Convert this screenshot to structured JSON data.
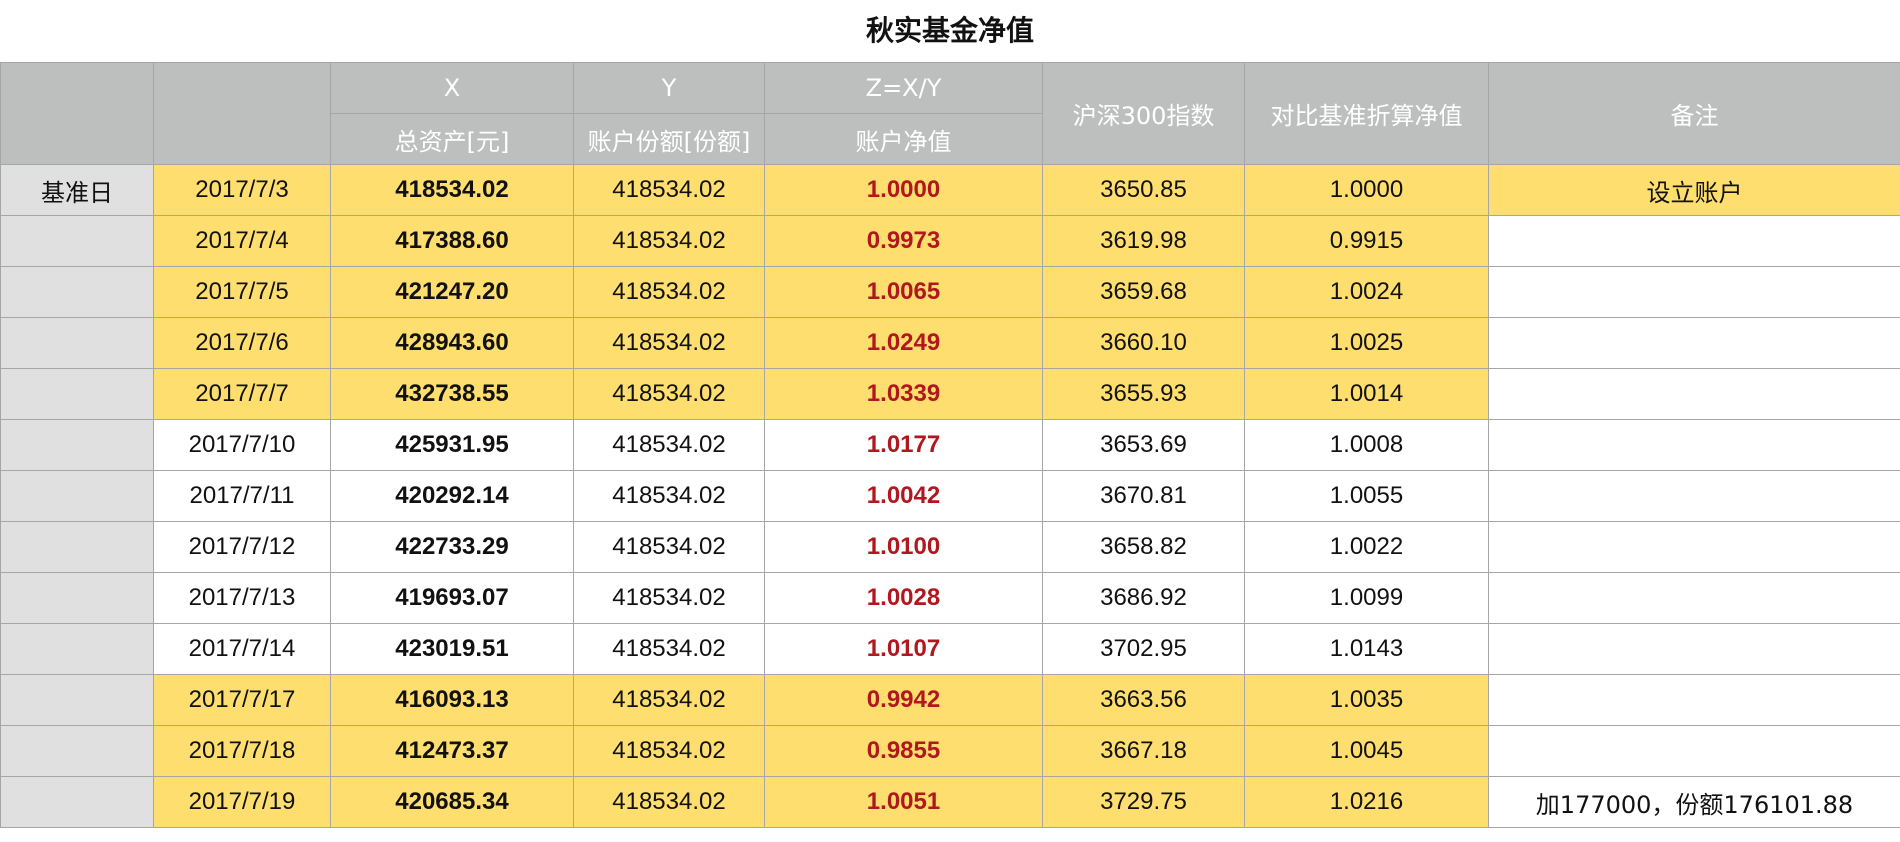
{
  "title": "秋实基金净值",
  "colors": {
    "header_bg": "#bdbfbe",
    "highlight": "#fdde6e",
    "nav_red": "#b0171f",
    "side_bg": "#e0e0e0"
  },
  "header": {
    "row1": {
      "x": "X",
      "y": "Y",
      "z": "Z=X/Y"
    },
    "row2": {
      "total": "总资产[元]",
      "shares": "账户份额[份额]",
      "nav": "账户净值"
    },
    "index": "沪深300指数",
    "adjusted_nav": "对比基准折算净值",
    "note": "备注"
  },
  "rows": [
    {
      "side": "基准日",
      "date": "2017/7/3",
      "total": "418534.02",
      "shares": "418534.02",
      "nav": "1.0000",
      "index": "3650.85",
      "adj": "1.0000",
      "note": "设立账户",
      "highlight": true,
      "note_highlight": true
    },
    {
      "side": "",
      "date": "2017/7/4",
      "total": "417388.60",
      "shares": "418534.02",
      "nav": "0.9973",
      "index": "3619.98",
      "adj": "0.9915",
      "note": "",
      "highlight": true,
      "note_highlight": false
    },
    {
      "side": "",
      "date": "2017/7/5",
      "total": "421247.20",
      "shares": "418534.02",
      "nav": "1.0065",
      "index": "3659.68",
      "adj": "1.0024",
      "note": "",
      "highlight": true,
      "note_highlight": false
    },
    {
      "side": "",
      "date": "2017/7/6",
      "total": "428943.60",
      "shares": "418534.02",
      "nav": "1.0249",
      "index": "3660.10",
      "adj": "1.0025",
      "note": "",
      "highlight": true,
      "note_highlight": false
    },
    {
      "side": "",
      "date": "2017/7/7",
      "total": "432738.55",
      "shares": "418534.02",
      "nav": "1.0339",
      "index": "3655.93",
      "adj": "1.0014",
      "note": "",
      "highlight": true,
      "note_highlight": false
    },
    {
      "side": "",
      "date": "2017/7/10",
      "total": "425931.95",
      "shares": "418534.02",
      "nav": "1.0177",
      "index": "3653.69",
      "adj": "1.0008",
      "note": "",
      "highlight": false,
      "note_highlight": false
    },
    {
      "side": "",
      "date": "2017/7/11",
      "total": "420292.14",
      "shares": "418534.02",
      "nav": "1.0042",
      "index": "3670.81",
      "adj": "1.0055",
      "note": "",
      "highlight": false,
      "note_highlight": false
    },
    {
      "side": "",
      "date": "2017/7/12",
      "total": "422733.29",
      "shares": "418534.02",
      "nav": "1.0100",
      "index": "3658.82",
      "adj": "1.0022",
      "note": "",
      "highlight": false,
      "note_highlight": false
    },
    {
      "side": "",
      "date": "2017/7/13",
      "total": "419693.07",
      "shares": "418534.02",
      "nav": "1.0028",
      "index": "3686.92",
      "adj": "1.0099",
      "note": "",
      "highlight": false,
      "note_highlight": false
    },
    {
      "side": "",
      "date": "2017/7/14",
      "total": "423019.51",
      "shares": "418534.02",
      "nav": "1.0107",
      "index": "3702.95",
      "adj": "1.0143",
      "note": "",
      "highlight": false,
      "note_highlight": false
    },
    {
      "side": "",
      "date": "2017/7/17",
      "total": "416093.13",
      "shares": "418534.02",
      "nav": "0.9942",
      "index": "3663.56",
      "adj": "1.0035",
      "note": "",
      "highlight": true,
      "note_highlight": false
    },
    {
      "side": "",
      "date": "2017/7/18",
      "total": "412473.37",
      "shares": "418534.02",
      "nav": "0.9855",
      "index": "3667.18",
      "adj": "1.0045",
      "note": "",
      "highlight": true,
      "note_highlight": false
    },
    {
      "side": "",
      "date": "2017/7/19",
      "total": "420685.34",
      "shares": "418534.02",
      "nav": "1.0051",
      "index": "3729.75",
      "adj": "1.0216",
      "note": "加177000，份额176101.88",
      "highlight": true,
      "note_highlight": false
    }
  ]
}
